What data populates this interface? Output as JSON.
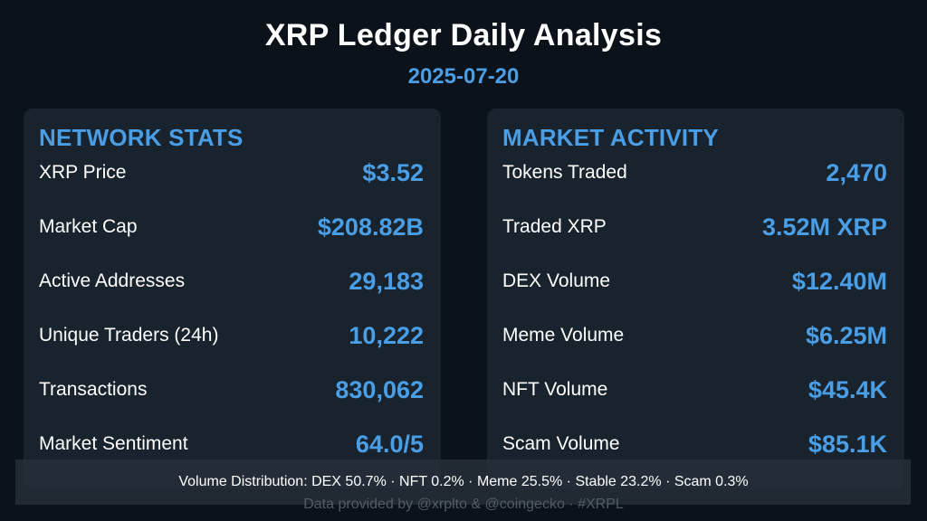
{
  "header": {
    "title": "XRP Ledger Daily Analysis",
    "date": "2025-07-20"
  },
  "network_stats": {
    "title": "NETWORK STATS",
    "rows": [
      {
        "label": "XRP Price",
        "value": "$3.52"
      },
      {
        "label": "Market Cap",
        "value": "$208.82B"
      },
      {
        "label": "Active Addresses",
        "value": "29,183"
      },
      {
        "label": "Unique Traders (24h)",
        "value": "10,222"
      },
      {
        "label": "Transactions",
        "value": "830,062"
      },
      {
        "label": "Market Sentiment",
        "value": "64.0/5"
      }
    ]
  },
  "market_activity": {
    "title": "MARKET ACTIVITY",
    "rows": [
      {
        "label": "Tokens Traded",
        "value": "2,470"
      },
      {
        "label": "Traded XRP",
        "value": "3.52M XRP"
      },
      {
        "label": "DEX Volume",
        "value": "$12.40M"
      },
      {
        "label": "Meme Volume",
        "value": "$6.25M"
      },
      {
        "label": "NFT Volume",
        "value": "$45.4K"
      },
      {
        "label": "Scam Volume",
        "value": "$85.1K"
      }
    ]
  },
  "footer": {
    "distribution": "Volume Distribution: DEX 50.7% · NFT 0.2% · Meme 25.5% · Stable 23.2% · Scam 0.3%",
    "credits": "Data provided by @xrplto & @coingecko · #XRPL"
  },
  "colors": {
    "background": "#0c121a",
    "panel": "#19232d",
    "accent": "#4a9ee6",
    "text": "#ffffff",
    "muted": "#535b66"
  }
}
